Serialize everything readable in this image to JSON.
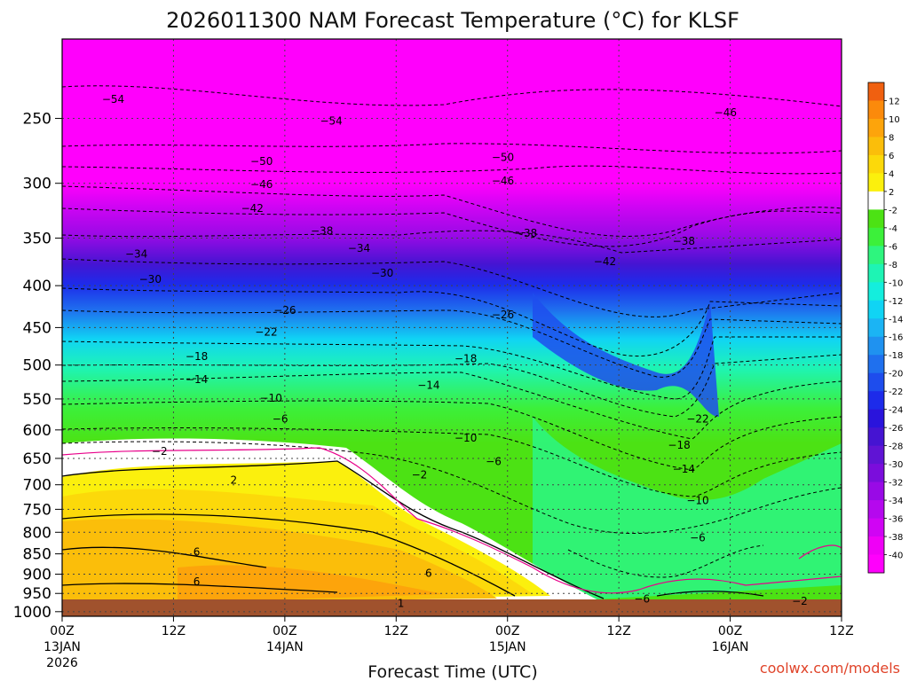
{
  "chart_data": {
    "type": "heatmap",
    "title": "2026011300 NAM Forecast Temperature (°C) for KLSF",
    "xlabel": "Forecast Time (UTC)",
    "credit": "coolwx.com/models",
    "x_ticks": [
      {
        "top": "00Z",
        "mid": "13JAN",
        "bot": "2026"
      },
      {
        "top": "12Z",
        "mid": "",
        "bot": ""
      },
      {
        "top": "00Z",
        "mid": "14JAN",
        "bot": ""
      },
      {
        "top": "12Z",
        "mid": "",
        "bot": ""
      },
      {
        "top": "00Z",
        "mid": "15JAN",
        "bot": ""
      },
      {
        "top": "12Z",
        "mid": "",
        "bot": ""
      },
      {
        "top": "00Z",
        "mid": "16JAN",
        "bot": ""
      },
      {
        "top": "12Z",
        "mid": "",
        "bot": ""
      }
    ],
    "x_hours": [
      0,
      12,
      24,
      36,
      48,
      60,
      72,
      84
    ],
    "xlim": [
      0,
      84
    ],
    "ylabel": "",
    "y_ticks": [
      "250",
      "300",
      "350",
      "400",
      "450",
      "500",
      "550",
      "600",
      "650",
      "700",
      "750",
      "800",
      "850",
      "900",
      "950",
      "1000"
    ],
    "y_levels": [
      250,
      300,
      350,
      400,
      450,
      500,
      550,
      600,
      650,
      700,
      750,
      800,
      850,
      900,
      950,
      1000
    ],
    "ylim": [
      200,
      1013
    ],
    "colorbar": {
      "labels": [
        "12",
        "10",
        "8",
        "6",
        "4",
        "2",
        "-2",
        "-4",
        "-6",
        "-8",
        "-10",
        "-12",
        "-14",
        "-16",
        "-18",
        "-20",
        "-22",
        "-24",
        "-26",
        "-28",
        "-30",
        "-32",
        "-34",
        "-36",
        "-38",
        "-40"
      ],
      "colors": [
        "#f06010",
        "#fb8a0b",
        "#fda40b",
        "#fbbe0a",
        "#fcd90a",
        "#fbf00d",
        "#ffffff",
        "#4ce214",
        "#3cf03a",
        "#2ef57e",
        "#1ef4b4",
        "#14eedd",
        "#10d4f4",
        "#1bb4f4",
        "#1f92f0",
        "#1f70ee",
        "#1e4ded",
        "#1d2bea",
        "#2a14dc",
        "#4514d2",
        "#6014d4",
        "#7b0ddc",
        "#990ae6",
        "#b508ee",
        "#d004f4",
        "#ef00f6",
        "#ff00fc"
      ]
    },
    "temperature_labels": [
      {
        "t": "-54",
        "hr": 5.5,
        "p": 237
      },
      {
        "t": "-54",
        "hr": 29.0,
        "p": 252
      },
      {
        "t": "-50",
        "hr": 21.5,
        "p": 282
      },
      {
        "t": "-50",
        "hr": 47.5,
        "p": 279
      },
      {
        "t": "-46",
        "hr": 21.5,
        "p": 301
      },
      {
        "t": "-46",
        "hr": 47.5,
        "p": 298
      },
      {
        "t": "-46",
        "hr": 71.5,
        "p": 246
      },
      {
        "t": "-42",
        "hr": 20.5,
        "p": 322
      },
      {
        "t": "-42",
        "hr": 58.5,
        "p": 374
      },
      {
        "t": "-38",
        "hr": 28.0,
        "p": 343
      },
      {
        "t": "-38",
        "hr": 50.0,
        "p": 345
      },
      {
        "t": "-38",
        "hr": 67.0,
        "p": 353
      },
      {
        "t": "-34",
        "hr": 8.0,
        "p": 366
      },
      {
        "t": "-34",
        "hr": 32.0,
        "p": 360
      },
      {
        "t": "-30",
        "hr": 9.5,
        "p": 393
      },
      {
        "t": "-30",
        "hr": 34.5,
        "p": 386
      },
      {
        "t": "-26",
        "hr": 24.0,
        "p": 429
      },
      {
        "t": "-26",
        "hr": 47.5,
        "p": 434
      },
      {
        "t": "-22",
        "hr": 22.0,
        "p": 456
      },
      {
        "t": "-22",
        "hr": 68.5,
        "p": 582
      },
      {
        "t": "-18",
        "hr": 14.5,
        "p": 488
      },
      {
        "t": "-18",
        "hr": 43.5,
        "p": 491
      },
      {
        "t": "-18",
        "hr": 66.5,
        "p": 626
      },
      {
        "t": "-14",
        "hr": 14.5,
        "p": 521
      },
      {
        "t": "-14",
        "hr": 39.5,
        "p": 529
      },
      {
        "t": "-14",
        "hr": 67.0,
        "p": 670
      },
      {
        "t": "-10",
        "hr": 22.5,
        "p": 549
      },
      {
        "t": "-10",
        "hr": 43.5,
        "p": 614
      },
      {
        "t": "-10",
        "hr": 68.5,
        "p": 732
      },
      {
        "t": "-6",
        "hr": 23.5,
        "p": 582
      },
      {
        "t": "-6",
        "hr": 46.5,
        "p": 656
      },
      {
        "t": "-6",
        "hr": 68.5,
        "p": 812
      },
      {
        "t": "-6",
        "hr": 62.5,
        "p": 965
      },
      {
        "t": "-2",
        "hr": 10.5,
        "p": 637
      },
      {
        "t": "-2",
        "hr": 38.5,
        "p": 681
      },
      {
        "t": "-2",
        "hr": 79.5,
        "p": 971
      },
      {
        "t": "2",
        "hr": 18.5,
        "p": 691
      },
      {
        "t": "6",
        "hr": 14.5,
        "p": 846
      },
      {
        "t": "6",
        "hr": 14.5,
        "p": 919
      },
      {
        "t": "6",
        "hr": 39.5,
        "p": 898
      },
      {
        "t": "1",
        "hr": 36.5,
        "p": 977
      }
    ]
  }
}
